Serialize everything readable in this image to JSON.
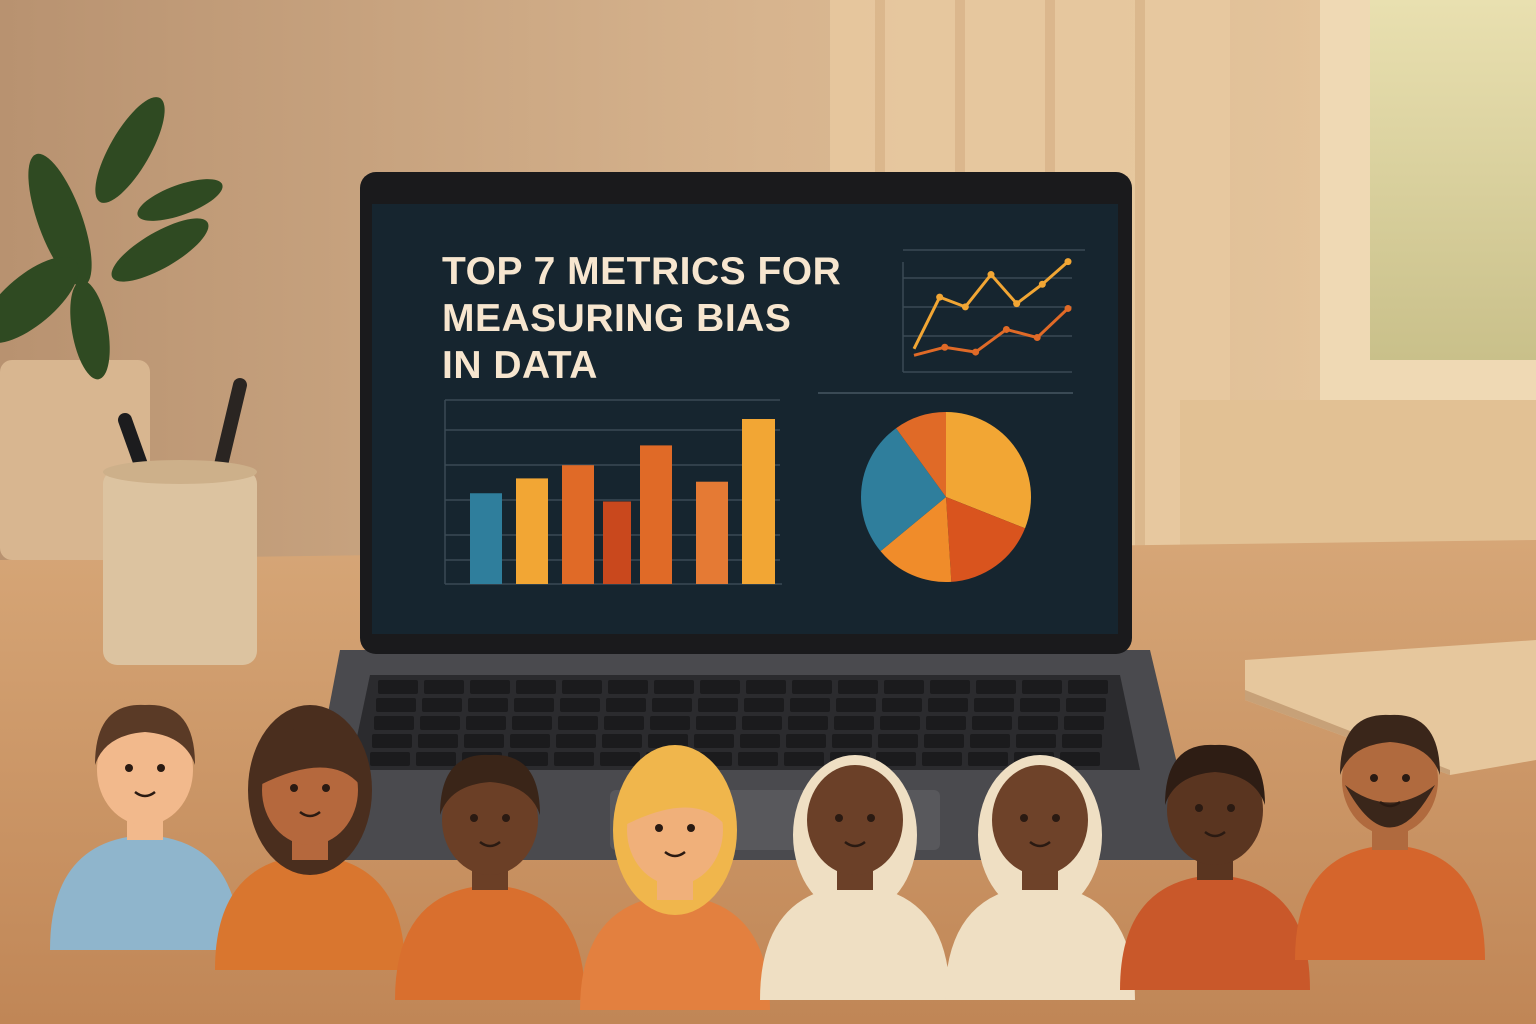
{
  "screen": {
    "title_lines": [
      "TOP 7 METRICS FOR",
      "MEASURING BIAS",
      "IN DATA"
    ]
  },
  "colors": {
    "screen_bg": "#16252f",
    "blue": "#2f7e9c",
    "yellow": "#f2a634",
    "orange": "#e06a27",
    "dark_orange": "#c9481d",
    "wall": "#d8b38a",
    "desk": "#d9a574"
  },
  "chart_data": [
    {
      "type": "line",
      "series": [
        {
          "color": "#f2a634",
          "values": [
            1,
            4.2,
            3.6,
            5.6,
            3.8,
            5,
            6.4
          ]
        },
        {
          "color": "#e06a27",
          "values": [
            0.6,
            1.1,
            0.8,
            2.2,
            1.7,
            3.5
          ]
        }
      ],
      "grid": true
    },
    {
      "type": "bar",
      "values": [
        55,
        64,
        72,
        50,
        84,
        62,
        100
      ],
      "bar_colors": [
        "#2f7e9c",
        "#f2a634",
        "#e06a27",
        "#c9481d",
        "#e06a27",
        "#e57a34",
        "#f2a634"
      ],
      "grid": true
    },
    {
      "type": "pie",
      "values": [
        31,
        18,
        15,
        26,
        10
      ],
      "slice_colors": [
        "#f2a634",
        "#d9541e",
        "#f08c2a",
        "#2f7e9c",
        "#e06a27"
      ]
    }
  ],
  "figurines": [
    {
      "skin": "#f2b98c",
      "hair": "#5a3a26",
      "shirt": "#8fb5cc",
      "style": "short"
    },
    {
      "skin": "#b5683d",
      "hair": "#4a2e1e",
      "shirt": "#d9762f",
      "style": "long"
    },
    {
      "skin": "#6b3f26",
      "hair": "#3a2518",
      "shirt": "#d96f2e",
      "style": "short"
    },
    {
      "skin": "#f0b07a",
      "hair": "#f0b64c",
      "shirt": "#e3803f",
      "style": "long"
    },
    {
      "skin": "#6b4028",
      "hair": "#efdfc3",
      "shirt": "#efdfc3",
      "style": "hijab"
    },
    {
      "skin": "#6e4229",
      "hair": "#efdfc3",
      "shirt": "#efdfc3",
      "style": "hijab"
    },
    {
      "skin": "#5a3520",
      "hair": "#2e1d14",
      "shirt": "#c9582a",
      "style": "short"
    },
    {
      "skin": "#b06a3e",
      "hair": "#3a261a",
      "shirt": "#d5652c",
      "style": "beard"
    }
  ]
}
